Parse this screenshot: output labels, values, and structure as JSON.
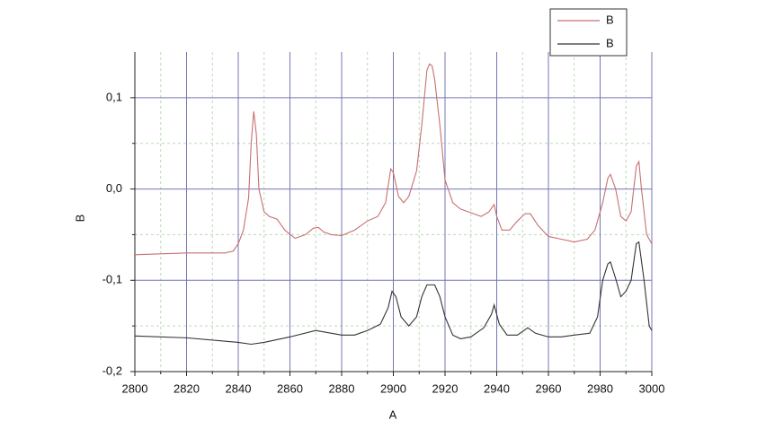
{
  "chart_data": {
    "type": "line",
    "x_label": "A",
    "y_label": "B",
    "xlim": [
      2800,
      3000
    ],
    "xticks": [
      2800,
      2820,
      2840,
      2860,
      2880,
      2900,
      2920,
      2940,
      2960,
      2980,
      3000
    ],
    "xminorticks": [
      2810,
      2830,
      2850,
      2870,
      2890,
      2910,
      2930,
      2950,
      2970,
      2990
    ],
    "ylim": [
      -0.2,
      0.15
    ],
    "yticks": [
      {
        "value": -0.2,
        "label": "-0,2"
      },
      {
        "value": -0.1,
        "label": "-0,1"
      },
      {
        "value": 0,
        "label": "0,0"
      },
      {
        "value": 0.1,
        "label": "0,1"
      }
    ],
    "yminorticks": [
      -0.15,
      -0.05,
      0.05
    ],
    "grid": true,
    "legend": "top-right",
    "series": [
      {
        "name": "B",
        "color": "#c87070",
        "x": [
          2800,
          2820,
          2835,
          2838,
          2840,
          2842,
          2844,
          2845,
          2846,
          2847,
          2848,
          2850,
          2852,
          2855,
          2858,
          2862,
          2866,
          2869,
          2871,
          2873,
          2876,
          2880,
          2885,
          2890,
          2894,
          2897,
          2899,
          2900,
          2902,
          2904,
          2906,
          2909,
          2911,
          2913,
          2914,
          2915,
          2916,
          2918,
          2920,
          2923,
          2926,
          2930,
          2934,
          2937,
          2939,
          2940,
          2942,
          2945,
          2948,
          2951,
          2953,
          2956,
          2960,
          2965,
          2970,
          2975,
          2978,
          2981,
          2983,
          2984,
          2986,
          2988,
          2990,
          2992,
          2994,
          2995,
          2996,
          2998,
          3000
        ],
        "values": [
          -0.072,
          -0.07,
          -0.07,
          -0.068,
          -0.06,
          -0.045,
          -0.01,
          0.05,
          0.085,
          0.06,
          0.0,
          -0.025,
          -0.03,
          -0.033,
          -0.045,
          -0.054,
          -0.05,
          -0.043,
          -0.042,
          -0.047,
          -0.05,
          -0.051,
          -0.045,
          -0.035,
          -0.03,
          -0.015,
          0.022,
          0.018,
          -0.008,
          -0.015,
          -0.008,
          0.02,
          0.07,
          0.13,
          0.137,
          0.135,
          0.12,
          0.07,
          0.01,
          -0.015,
          -0.022,
          -0.026,
          -0.03,
          -0.025,
          -0.017,
          -0.03,
          -0.045,
          -0.045,
          -0.035,
          -0.027,
          -0.027,
          -0.04,
          -0.052,
          -0.055,
          -0.058,
          -0.055,
          -0.045,
          -0.015,
          0.012,
          0.016,
          0.0,
          -0.03,
          -0.035,
          -0.025,
          0.025,
          0.03,
          0.0,
          -0.05,
          -0.06
        ]
      },
      {
        "name": "B",
        "color": "#333333",
        "x": [
          2800,
          2820,
          2840,
          2845,
          2850,
          2860,
          2870,
          2880,
          2885,
          2890,
          2895,
          2898,
          2899.5,
          2901,
          2903,
          2906,
          2909,
          2911,
          2913,
          2916,
          2918,
          2920,
          2923,
          2926,
          2930,
          2935,
          2938,
          2939,
          2941,
          2944,
          2948,
          2952,
          2955,
          2960,
          2965,
          2970,
          2976,
          2979,
          2981,
          2983,
          2984,
          2986,
          2988,
          2990,
          2992,
          2994,
          2995,
          2997,
          2999,
          3000
        ],
        "values": [
          -0.161,
          -0.163,
          -0.168,
          -0.17,
          -0.168,
          -0.162,
          -0.155,
          -0.16,
          -0.16,
          -0.155,
          -0.148,
          -0.13,
          -0.112,
          -0.118,
          -0.14,
          -0.15,
          -0.14,
          -0.118,
          -0.105,
          -0.105,
          -0.118,
          -0.14,
          -0.16,
          -0.164,
          -0.162,
          -0.152,
          -0.137,
          -0.127,
          -0.148,
          -0.16,
          -0.16,
          -0.152,
          -0.158,
          -0.162,
          -0.162,
          -0.16,
          -0.158,
          -0.14,
          -0.1,
          -0.082,
          -0.08,
          -0.098,
          -0.118,
          -0.112,
          -0.1,
          -0.06,
          -0.058,
          -0.1,
          -0.15,
          -0.155
        ]
      }
    ]
  }
}
